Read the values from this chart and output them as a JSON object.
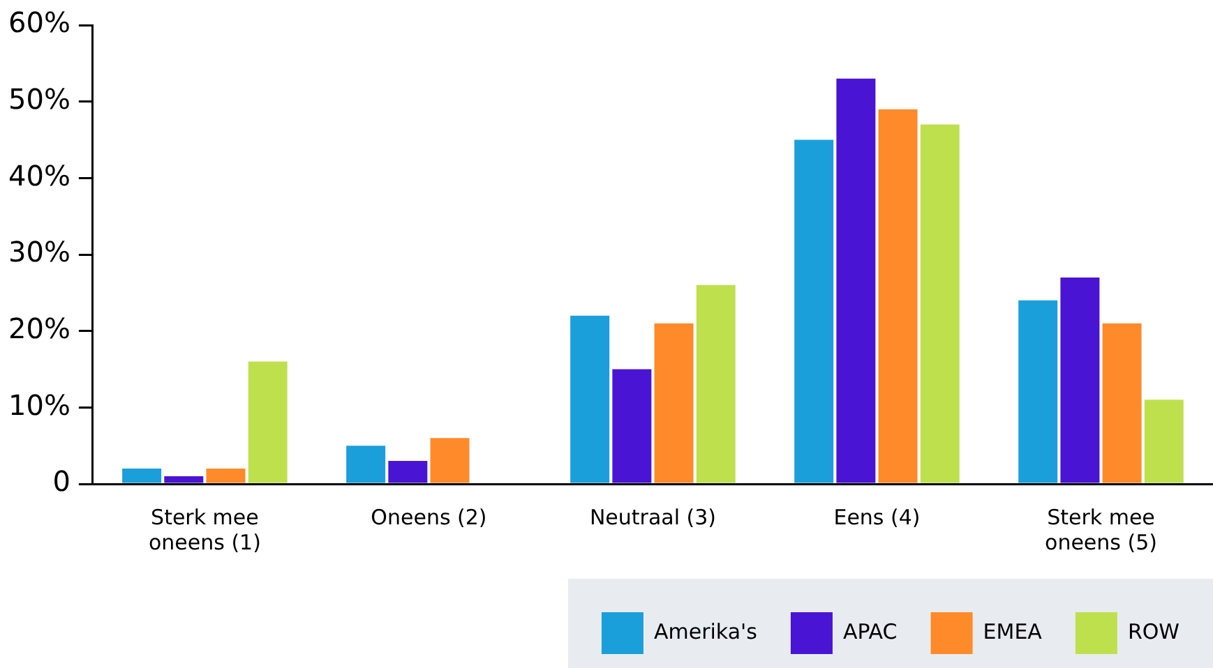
{
  "chart_data": {
    "type": "bar",
    "categories": [
      "Sterk mee oneens (1)",
      "Oneens (2)",
      "Neutraal (3)",
      "Eens (4)",
      "Sterk mee oneens (5)"
    ],
    "series": [
      {
        "name": "Amerika's",
        "color": "#1a9fdb",
        "values": [
          2,
          5,
          22,
          45,
          24
        ]
      },
      {
        "name": "APAC",
        "color": "#4a14d4",
        "values": [
          1,
          3,
          15,
          53,
          27
        ]
      },
      {
        "name": "EMEA",
        "color": "#ff8a2a",
        "values": [
          2,
          6,
          21,
          49,
          21
        ]
      },
      {
        "name": "ROW",
        "color": "#bfe04d",
        "values": [
          16,
          0,
          26,
          47,
          11
        ]
      }
    ],
    "ylim": [
      0,
      60
    ],
    "yticks": [
      0,
      {
        "value": 10,
        "label": "10%"
      },
      {
        "value": 20,
        "label": "20%"
      },
      {
        "value": 30,
        "label": "30%"
      },
      {
        "value": 40,
        "label": "40%"
      },
      {
        "value": 50,
        "label": "50%"
      },
      {
        "value": 60,
        "label": "60%"
      }
    ],
    "grid": false,
    "legend": "bottom right"
  }
}
